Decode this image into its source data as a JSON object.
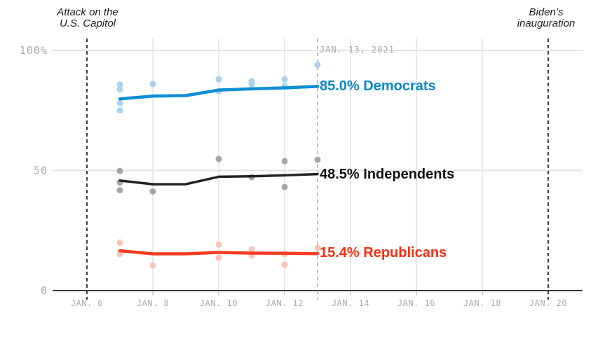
{
  "page": {
    "background": "#ffffff"
  },
  "annotations": {
    "capitol": {
      "line1": "Attack on the",
      "line2": "U.S. Capitol",
      "day": 6
    },
    "inauguration": {
      "line1": "Biden’s",
      "line2": "inauguration",
      "day": 20
    },
    "current_date": {
      "label": "JAN. 13, 2021",
      "day": 13
    }
  },
  "chart_data": {
    "type": "line",
    "title": "",
    "xlabel": "",
    "ylabel": "",
    "x_unit": "date (January 2021)",
    "ylim": [
      0,
      100
    ],
    "grid": true,
    "legend_position": "inline-right",
    "x_ticks": [
      {
        "day": 6,
        "label": "JAN. 6"
      },
      {
        "day": 8,
        "label": "JAN. 8"
      },
      {
        "day": 10,
        "label": "JAN. 10"
      },
      {
        "day": 12,
        "label": "JAN. 12"
      },
      {
        "day": 14,
        "label": "JAN. 14"
      },
      {
        "day": 16,
        "label": "JAN. 16"
      },
      {
        "day": 18,
        "label": "JAN. 18"
      },
      {
        "day": 20,
        "label": "JAN. 20"
      }
    ],
    "y_ticks": [
      {
        "value": 0,
        "label": "0"
      },
      {
        "value": 50,
        "label": "50"
      },
      {
        "value": 100,
        "label": "100%"
      }
    ],
    "styles": {
      "grid_color": "#e2e2e2",
      "axis_color": "#3c3c3c",
      "tick_mark_color": "#c9c9c9",
      "event_line_color": "#434343",
      "current_date_line_color": "#bfbfbf"
    },
    "series": [
      {
        "name": "Democrats",
        "label": "85.0% Democrats",
        "current_value": 85.0,
        "line_color": "#0f8ed5",
        "dot_color": "#a9d4f0",
        "label_color": "#0787cc",
        "trend": [
          {
            "day": 7,
            "value": 79.8
          },
          {
            "day": 8,
            "value": 81.0
          },
          {
            "day": 9,
            "value": 81.2
          },
          {
            "day": 10,
            "value": 83.5
          },
          {
            "day": 11,
            "value": 84.0
          },
          {
            "day": 12,
            "value": 84.4
          },
          {
            "day": 13,
            "value": 85.0
          }
        ],
        "polls": [
          {
            "day": 7,
            "value": 85.8
          },
          {
            "day": 7,
            "value": 83.8
          },
          {
            "day": 7,
            "value": 78.0
          },
          {
            "day": 7,
            "value": 75.0
          },
          {
            "day": 8,
            "value": 86.0
          },
          {
            "day": 10,
            "value": 88.0
          },
          {
            "day": 10,
            "value": 83.0
          },
          {
            "day": 11,
            "value": 87.2
          },
          {
            "day": 11,
            "value": 86.0
          },
          {
            "day": 12,
            "value": 88.0
          },
          {
            "day": 12,
            "value": 85.3
          },
          {
            "day": 13,
            "value": 94.0
          }
        ]
      },
      {
        "name": "Independents",
        "label": "48.5% Independents",
        "current_value": 48.5,
        "line_color": "#222222",
        "dot_color": "#a6a6a6",
        "label_color": "#111111",
        "trend": [
          {
            "day": 7,
            "value": 45.8
          },
          {
            "day": 8,
            "value": 44.3
          },
          {
            "day": 9,
            "value": 44.3
          },
          {
            "day": 10,
            "value": 47.4
          },
          {
            "day": 11,
            "value": 47.6
          },
          {
            "day": 12,
            "value": 48.0
          },
          {
            "day": 13,
            "value": 48.5
          }
        ],
        "polls": [
          {
            "day": 7,
            "value": 49.8
          },
          {
            "day": 7,
            "value": 45.0
          },
          {
            "day": 7,
            "value": 41.8
          },
          {
            "day": 8,
            "value": 41.3
          },
          {
            "day": 10,
            "value": 54.8
          },
          {
            "day": 11,
            "value": 47.2
          },
          {
            "day": 12,
            "value": 53.9
          },
          {
            "day": 12,
            "value": 43.1
          },
          {
            "day": 13,
            "value": 54.5
          }
        ]
      },
      {
        "name": "Republicans",
        "label": "15.4% Republicans",
        "current_value": 15.4,
        "line_color": "#f53c23",
        "dot_color": "#fac4b6",
        "label_color": "#fb2d10",
        "trend": [
          {
            "day": 7,
            "value": 16.6
          },
          {
            "day": 8,
            "value": 15.3
          },
          {
            "day": 9,
            "value": 15.3
          },
          {
            "day": 10,
            "value": 15.9
          },
          {
            "day": 11,
            "value": 15.6
          },
          {
            "day": 12,
            "value": 15.5
          },
          {
            "day": 13,
            "value": 15.4
          }
        ],
        "polls": [
          {
            "day": 7,
            "value": 20.0
          },
          {
            "day": 7,
            "value": 15.2
          },
          {
            "day": 8,
            "value": 10.5
          },
          {
            "day": 10,
            "value": 19.2
          },
          {
            "day": 10,
            "value": 13.7
          },
          {
            "day": 11,
            "value": 17.2
          },
          {
            "day": 11,
            "value": 14.6
          },
          {
            "day": 12,
            "value": 15.2
          },
          {
            "day": 12,
            "value": 10.8
          },
          {
            "day": 13,
            "value": 17.8
          }
        ]
      }
    ]
  }
}
